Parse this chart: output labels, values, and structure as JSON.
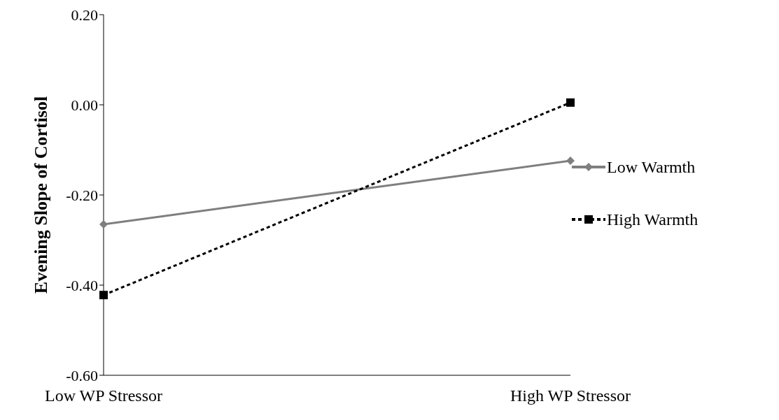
{
  "chart_data": {
    "type": "line",
    "ylabel": "Evening Slope of Cortisol",
    "categories": [
      "Low WP Stressor",
      "High WP Stressor"
    ],
    "ylim": [
      -0.6,
      0.2
    ],
    "yticks": [
      {
        "value": -0.6,
        "label": "-0.60"
      },
      {
        "value": -0.4,
        "label": "-0.40"
      },
      {
        "value": -0.2,
        "label": "-0.20"
      },
      {
        "value": 0,
        "label": "0.00"
      },
      {
        "value": 0.2,
        "label": "0.20"
      }
    ],
    "grid": false,
    "legend": "right",
    "series": [
      {
        "name": "Low Warmth",
        "color": "#7f7f7f",
        "values": [
          -0.265,
          -0.124
        ],
        "marker": "diamond",
        "line_style": "solid"
      },
      {
        "name": "High Warmth",
        "color": "#000000",
        "values": [
          -0.422,
          0.005
        ],
        "marker": "square",
        "line_style": "dotted"
      }
    ]
  }
}
